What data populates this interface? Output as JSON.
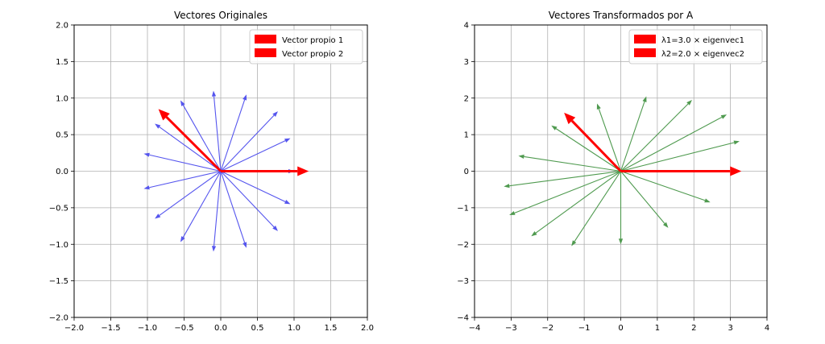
{
  "chart_data": [
    {
      "type": "quiver",
      "title": "Vectores Originales",
      "xlabel": "",
      "ylabel": "",
      "xlim": [
        -2,
        2
      ],
      "ylim": [
        -2,
        2
      ],
      "xticks": [
        "−2.0",
        "−1.5",
        "−1.0",
        "−0.5",
        "0.0",
        "0.5",
        "1.0",
        "1.5",
        "2.0"
      ],
      "xtick_values": [
        -2,
        -1.5,
        -1,
        -0.5,
        0,
        0.5,
        1,
        1.5,
        2
      ],
      "yticks": [
        "−2.0",
        "−1.5",
        "−1.0",
        "−0.5",
        "0.0",
        "0.5",
        "1.0",
        "1.5",
        "2.0"
      ],
      "ytick_values": [
        -2,
        -1.5,
        -1,
        -0.5,
        0,
        0.5,
        1,
        1.5,
        2
      ],
      "grid": true,
      "legend_position": "top-right",
      "vector_color": "#5555ee",
      "vectors": [
        [
          1.0,
          0.0
        ],
        [
          0.95,
          0.45
        ],
        [
          0.78,
          0.82
        ],
        [
          0.35,
          1.05
        ],
        [
          -0.1,
          1.1
        ],
        [
          -0.55,
          0.97
        ],
        [
          -0.9,
          0.65
        ],
        [
          -1.05,
          0.24
        ],
        [
          -1.05,
          -0.24
        ],
        [
          -0.9,
          -0.65
        ],
        [
          -0.55,
          -0.97
        ],
        [
          -0.1,
          -1.1
        ],
        [
          0.35,
          -1.05
        ],
        [
          0.78,
          -0.82
        ],
        [
          0.95,
          -0.45
        ]
      ],
      "eigen_series": [
        {
          "name": "Vector propio 1",
          "color": "#ff0000",
          "vector": [
            1.2,
            0.0
          ]
        },
        {
          "name": "Vector propio 2",
          "color": "#ff0000",
          "vector": [
            -0.85,
            0.85
          ]
        }
      ]
    },
    {
      "type": "quiver",
      "title": "Vectores Transformados por A",
      "xlabel": "",
      "ylabel": "",
      "xlim": [
        -4,
        4
      ],
      "ylim": [
        -4,
        4
      ],
      "xticks": [
        "−4",
        "−3",
        "−2",
        "−1",
        "0",
        "1",
        "2",
        "3",
        "4"
      ],
      "xtick_values": [
        -4,
        -3,
        -2,
        -1,
        0,
        1,
        2,
        3,
        4
      ],
      "yticks": [
        "−4",
        "−3",
        "−2",
        "−1",
        "0",
        "1",
        "2",
        "3",
        "4"
      ],
      "ytick_values": [
        -4,
        -3,
        -2,
        -1,
        0,
        1,
        2,
        3,
        4
      ],
      "grid": true,
      "legend_position": "top-right",
      "vector_color": "#4f9a4f",
      "vectors": [
        [
          3.25,
          0.82
        ],
        [
          2.9,
          1.55
        ],
        [
          1.95,
          1.95
        ],
        [
          0.7,
          2.05
        ],
        [
          -0.65,
          1.85
        ],
        [
          -1.9,
          1.25
        ],
        [
          -2.8,
          0.42
        ],
        [
          -3.2,
          -0.42
        ],
        [
          -3.05,
          -1.2
        ],
        [
          -2.45,
          -1.78
        ],
        [
          -1.35,
          -2.05
        ],
        [
          0.0,
          -2.0
        ],
        [
          1.3,
          -1.55
        ],
        [
          2.45,
          -0.85
        ]
      ],
      "eigen_series": [
        {
          "name": "λ1=3.0 × eigenvec1",
          "color": "#ff0000",
          "vector": [
            3.3,
            0.0
          ]
        },
        {
          "name": "λ2=2.0 × eigenvec2",
          "color": "#ff0000",
          "vector": [
            -1.55,
            1.6
          ]
        }
      ]
    }
  ]
}
